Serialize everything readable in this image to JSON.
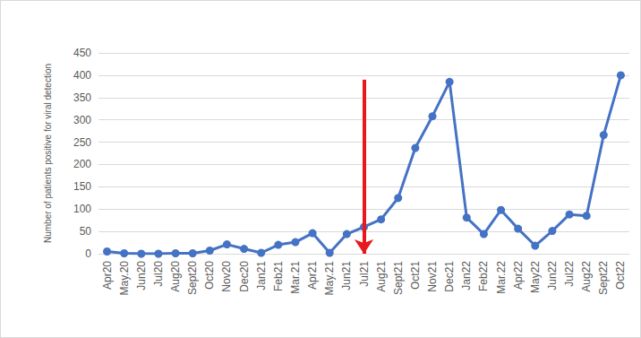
{
  "chart_data": {
    "type": "line",
    "y_label": "Number of patients positive for viral detection",
    "categories": [
      "Apr20",
      "May.20",
      "Jun20",
      "Jul20",
      "Aug20",
      "Sept20",
      "Oct20",
      "Nov20",
      "Dec20",
      "Jan21",
      "Feb21",
      "Mar.21",
      "Apr21",
      "May.21",
      "Jun21",
      "Jul21",
      "Aug21",
      "Sept21",
      "Oct21",
      "Nov21",
      "Dec21",
      "Jan22",
      "Feb22",
      "Mar.22",
      "Apr22",
      "May22",
      "Jun22",
      "Jul22",
      "Aug22",
      "Sept22",
      "Oct22"
    ],
    "values": [
      5,
      1,
      0,
      0,
      1,
      1,
      7,
      21,
      11,
      2,
      20,
      26,
      46,
      2,
      44,
      60,
      77,
      125,
      237,
      308,
      385,
      81,
      44,
      98,
      56,
      18,
      51,
      88,
      85,
      266,
      400
    ],
    "color": "#4472c4",
    "marker": "circle",
    "ylim": [
      0,
      450
    ],
    "yticks": [
      0,
      50,
      100,
      150,
      200,
      250,
      300,
      350,
      400,
      450
    ],
    "grid": true,
    "annotations": [
      {
        "type": "arrow",
        "x": "Jul21",
        "y_start": 390,
        "y_end": 0,
        "color": "#e8191c"
      }
    ]
  }
}
